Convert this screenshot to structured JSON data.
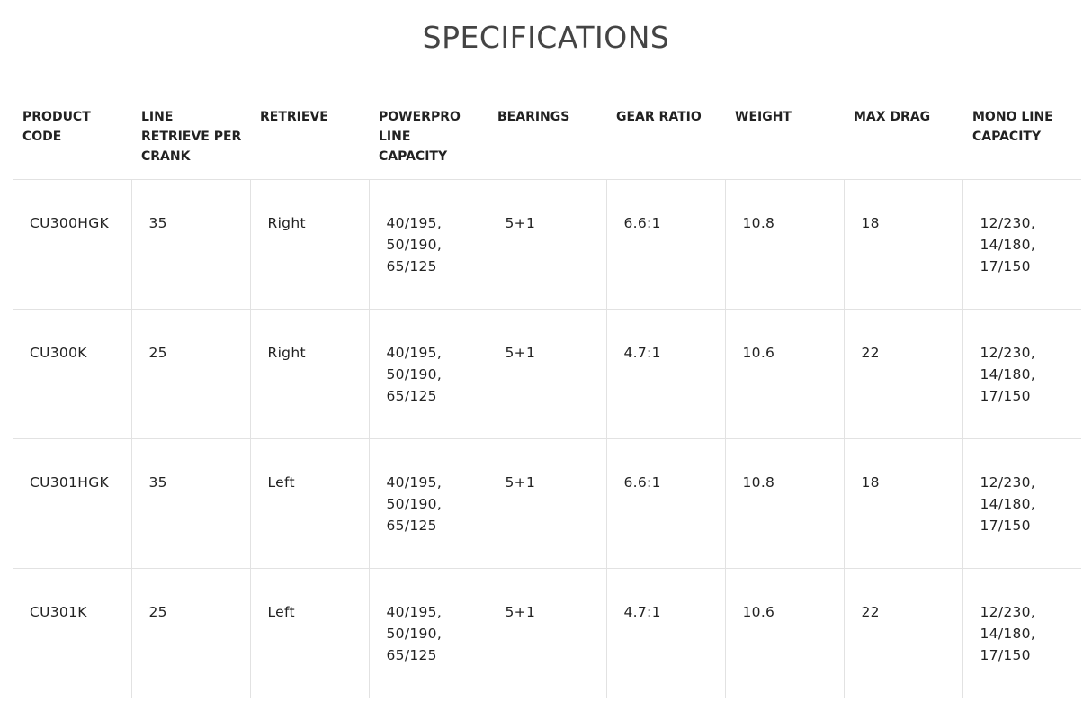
{
  "title": "SPECIFICATIONS",
  "columns": [
    "PRODUCT CODE",
    "LINE RETRIEVE PER CRANK",
    "RETRIEVE",
    "POWERPRO LINE CAPACITY",
    "BEARINGS",
    "GEAR RATIO",
    "WEIGHT",
    "MAX DRAG",
    "MONO LINE CAPACITY"
  ],
  "rows": [
    [
      "CU300HGK",
      "35",
      "Right",
      "40/195,\n50/190,\n65/125",
      "5+1",
      "6.6:1",
      "10.8",
      "18",
      "12/230,\n14/180,\n17/150"
    ],
    [
      "CU300K",
      "25",
      "Right",
      "40/195,\n50/190,\n65/125",
      "5+1",
      "4.7:1",
      "10.6",
      "22",
      "12/230,\n14/180,\n17/150"
    ],
    [
      "CU301HGK",
      "35",
      "Left",
      "40/195,\n50/190,\n65/125",
      "5+1",
      "6.6:1",
      "10.8",
      "18",
      "12/230,\n14/180,\n17/150"
    ],
    [
      "CU301K",
      "25",
      "Left",
      "40/195,\n50/190,\n65/125",
      "5+1",
      "4.7:1",
      "10.6",
      "22",
      "12/230,\n14/180,\n17/150"
    ]
  ]
}
